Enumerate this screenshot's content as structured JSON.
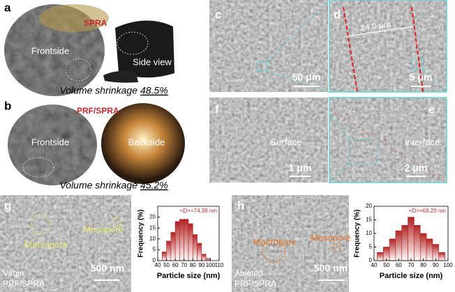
{
  "panel_a": {
    "label": "a",
    "sample": "SPRA",
    "front": "Frontside",
    "side": "Side view",
    "shrinkage_text": "Volume shrinkage",
    "shrinkage_value": "48.5%"
  },
  "panel_b": {
    "label": "b",
    "sample": "PRF/SPRA",
    "front": "Frontside",
    "back": "Backside",
    "shrinkage_text": "Volume shrinkage",
    "shrinkage_value": "45.2%"
  },
  "panel_c": {
    "label": "c",
    "scale": "50 μm"
  },
  "panel_d": {
    "label": "d",
    "width": "14.0 μm",
    "scale": "5 μm"
  },
  "panel_f": {
    "label": "f",
    "caption": "Surface",
    "scale": "1 μm"
  },
  "panel_e": {
    "label": "e",
    "caption": "Interface",
    "scale": "2 μm"
  },
  "panel_g": {
    "label": "g",
    "macropore": "Macropore",
    "mesopore": "Mesopore",
    "sample_lines": [
      "Virgin",
      "PRF/SPRA"
    ],
    "scale": "500 nm"
  },
  "panel_h": {
    "label": "h",
    "macropore": "Macropore",
    "mesopore": "Mesopore",
    "sample_lines": [
      "Ablated",
      "PRF/SPRA"
    ],
    "scale": "500 nm"
  },
  "chart_data": [
    {
      "type": "histogram",
      "title": "<D>=74.39 nm",
      "xlabel": "Particle size (nm)",
      "ylabel": "Frequency (%)",
      "bins": [
        45,
        50,
        55,
        60,
        65,
        70,
        75,
        80,
        85,
        90,
        95,
        100
      ],
      "values": [
        4,
        9,
        13,
        18,
        19,
        19,
        17,
        12,
        8,
        3,
        1
      ],
      "color": "#b22222",
      "xlim": [
        40,
        110
      ],
      "xticks": [
        40,
        50,
        60,
        70,
        80,
        90,
        100,
        110
      ],
      "ylim": [
        0,
        25
      ],
      "yticks": [
        0,
        5,
        10,
        15,
        20
      ]
    },
    {
      "type": "histogram",
      "title": "<D>=69.20 nm",
      "xlabel": "Particle size (nm)",
      "ylabel": "Frequency (%)",
      "bins": [
        42.5,
        47.5,
        52.5,
        57.5,
        62.5,
        67.5,
        72.5,
        77.5,
        82.5,
        87.5,
        92.5,
        97.5
      ],
      "values": [
        3,
        5,
        8,
        11,
        13,
        16,
        13,
        10,
        8,
        6,
        3
      ],
      "color": "#b22222",
      "xlim": [
        40,
        100
      ],
      "xticks": [
        40,
        50,
        60,
        70,
        80,
        90,
        100
      ],
      "ylim": [
        0,
        20
      ],
      "yticks": [
        0,
        5,
        10,
        15,
        20
      ]
    }
  ]
}
